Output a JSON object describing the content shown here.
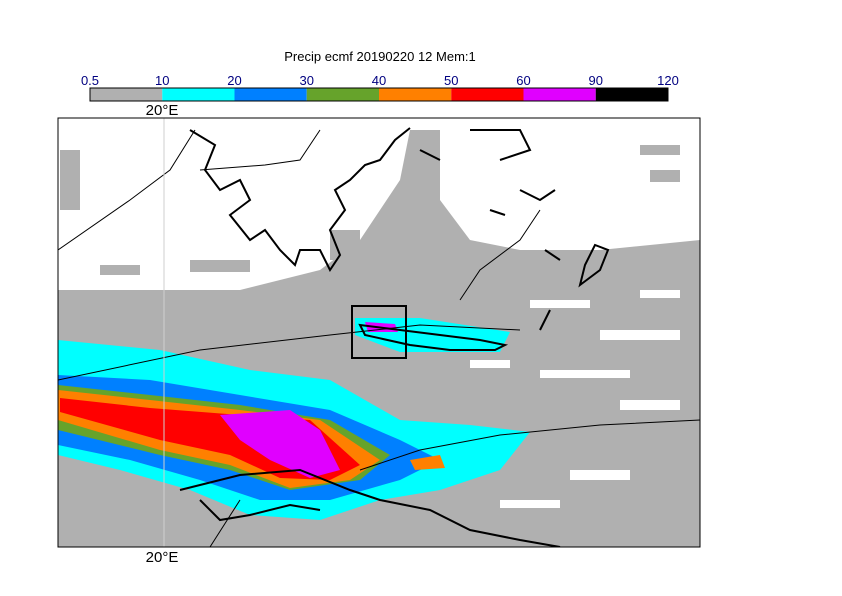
{
  "title": "Precip ecmf 20190220 12 Mem:1",
  "colorbar": {
    "levels": [
      0.5,
      10,
      20,
      30,
      40,
      50,
      60,
      90,
      120
    ],
    "colors": [
      "#b0b0b0",
      "#00ffff",
      "#0080ff",
      "#66a32b",
      "#ff8000",
      "#ff0000",
      "#e000ff",
      "#000000"
    ]
  },
  "lon_labels": {
    "top": "20°E",
    "bottom": "20°E"
  }
}
